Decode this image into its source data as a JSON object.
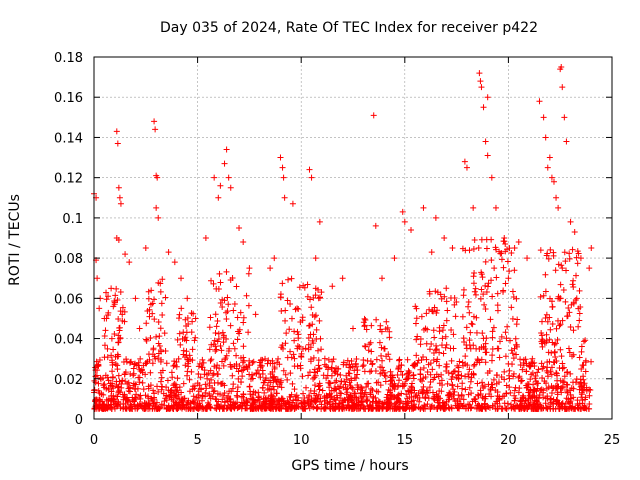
{
  "chart_data": {
    "type": "scatter",
    "title": "Day 035 of 2024, Rate Of TEC Index for receiver p422",
    "xlabel": "GPS time / hours",
    "ylabel": "ROTI / TECUs",
    "xlim": [
      0,
      25
    ],
    "ylim": [
      0,
      0.18
    ],
    "xticks": [
      0,
      5,
      10,
      15,
      20,
      25
    ],
    "xtick_labels": [
      "0",
      "5",
      "10",
      "15",
      "20",
      "25"
    ],
    "yticks": [
      0,
      0.02,
      0.04,
      0.06,
      0.08,
      0.1,
      0.12,
      0.14,
      0.16,
      0.18
    ],
    "ytick_labels": [
      "0",
      "0.02",
      "0.04",
      "0.06",
      "0.08",
      "0.1",
      "0.12",
      "0.14",
      "0.16",
      "0.18"
    ],
    "grid": true,
    "marker": "+",
    "color": "#ff0000",
    "series": [
      {
        "name": "ROTI",
        "x": [
          0.0,
          0.1,
          0.1,
          0.15,
          0.25,
          0.3,
          0.5,
          1.1,
          1.15,
          1.2,
          1.25,
          1.3,
          1.1,
          1.2,
          1.5,
          1.7,
          2.0,
          2.5,
          2.9,
          2.95,
          3.0,
          3.05,
          3.0,
          3.1,
          3.6,
          3.9,
          4.2,
          5.4,
          5.8,
          6.0,
          6.1,
          6.3,
          6.4,
          6.5,
          6.6,
          7.0,
          7.2,
          7.5,
          8.5,
          8.7,
          9.0,
          9.1,
          9.15,
          9.2,
          9.6,
          10.4,
          10.5,
          10.9,
          11.5,
          12.0,
          13.5,
          13.6,
          13.9,
          14.5,
          14.9,
          15.0,
          15.3,
          15.9,
          16.3,
          16.5,
          16.9,
          17.3,
          17.9,
          18.0,
          18.3,
          18.6,
          18.65,
          18.7,
          18.8,
          18.9,
          19.0,
          19.0,
          19.2,
          19.4,
          19.8,
          20.3,
          20.5,
          20.9,
          21.5,
          21.7,
          21.8,
          21.9,
          22.0,
          22.1,
          22.2,
          22.3,
          22.4,
          22.5,
          22.55,
          22.6,
          22.7,
          22.8,
          23.0,
          23.2,
          23.5,
          23.9,
          24.0,
          0.6,
          2.2,
          4.5,
          7.8,
          9.8,
          12.5,
          14.0,
          17.0,
          20.0,
          23.3,
          10.7,
          16.0
        ],
        "y": [
          0.112,
          0.11,
          0.079,
          0.07,
          0.055,
          0.06,
          0.05,
          0.143,
          0.137,
          0.115,
          0.11,
          0.107,
          0.09,
          0.089,
          0.082,
          0.078,
          0.06,
          0.085,
          0.148,
          0.144,
          0.121,
          0.12,
          0.105,
          0.1,
          0.083,
          0.078,
          0.07,
          0.09,
          0.12,
          0.11,
          0.116,
          0.127,
          0.134,
          0.12,
          0.115,
          0.095,
          0.088,
          0.075,
          0.075,
          0.08,
          0.13,
          0.125,
          0.12,
          0.11,
          0.107,
          0.124,
          0.12,
          0.098,
          0.066,
          0.07,
          0.151,
          0.096,
          0.07,
          0.08,
          0.103,
          0.098,
          0.094,
          0.105,
          0.083,
          0.1,
          0.09,
          0.085,
          0.128,
          0.125,
          0.105,
          0.172,
          0.168,
          0.165,
          0.155,
          0.138,
          0.131,
          0.16,
          0.12,
          0.105,
          0.09,
          0.085,
          0.088,
          0.08,
          0.158,
          0.15,
          0.14,
          0.125,
          0.13,
          0.12,
          0.118,
          0.11,
          0.105,
          0.174,
          0.175,
          0.165,
          0.15,
          0.138,
          0.098,
          0.093,
          0.08,
          0.075,
          0.085,
          0.05,
          0.045,
          0.06,
          0.052,
          0.055,
          0.045,
          0.035,
          0.065,
          0.07,
          0.06,
          0.08,
          0.045
        ],
        "background_band": "dense noise-floor values between 0.005 and 0.04 TECUs from 0 to 24 h, with clusters of 0.04-0.09 TECUs around 0-8 h, 9-12 h, 16-24 h"
      }
    ]
  }
}
